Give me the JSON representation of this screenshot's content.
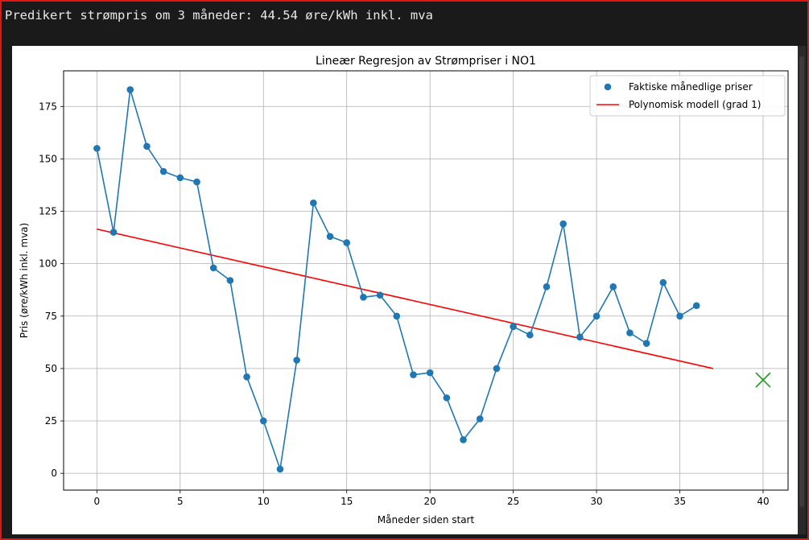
{
  "output": {
    "prediction_text": "Predikert strømpris om 3 måneder: 44.54 øre/kWh inkl. mva"
  },
  "chart_data": {
    "type": "line",
    "title": "Lineær Regresjon av Strømpriser i NO1",
    "xlabel": "Måneder siden start",
    "ylabel": "Pris (øre/kWh inkl. mva)",
    "xlim": [
      -2,
      41.5
    ],
    "ylim": [
      -8,
      192
    ],
    "xticks": [
      0,
      5,
      10,
      15,
      20,
      25,
      30,
      35,
      40
    ],
    "yticks": [
      0,
      25,
      50,
      75,
      100,
      125,
      150,
      175
    ],
    "grid": true,
    "legend_position": "top-right",
    "series": [
      {
        "name": "Faktiske månedlige priser",
        "kind": "scatter+line",
        "color": "#1f77b4",
        "x": [
          0,
          1,
          2,
          3,
          4,
          5,
          6,
          7,
          8,
          9,
          10,
          11,
          12,
          13,
          14,
          15,
          16,
          17,
          18,
          19,
          20,
          21,
          22,
          23,
          24,
          25,
          26,
          27,
          28,
          29,
          30,
          31,
          32,
          33,
          34,
          35,
          36
        ],
        "y": [
          155,
          115,
          183,
          156,
          144,
          141,
          139,
          98,
          92,
          46,
          25,
          2,
          54,
          129,
          113,
          110,
          84,
          85,
          75,
          47,
          48,
          36,
          16,
          26,
          50,
          70,
          66,
          89,
          119,
          65,
          75,
          89,
          67,
          62,
          91,
          75,
          80
        ]
      },
      {
        "name": "Polynomisk modell (grad 1)",
        "kind": "line",
        "color": "#ff0000",
        "x": [
          0,
          37
        ],
        "y": [
          116.5,
          50
        ]
      },
      {
        "kind": "marker",
        "marker": "x",
        "color": "#2ca02c",
        "x": [
          40
        ],
        "y": [
          44.54
        ]
      }
    ]
  }
}
